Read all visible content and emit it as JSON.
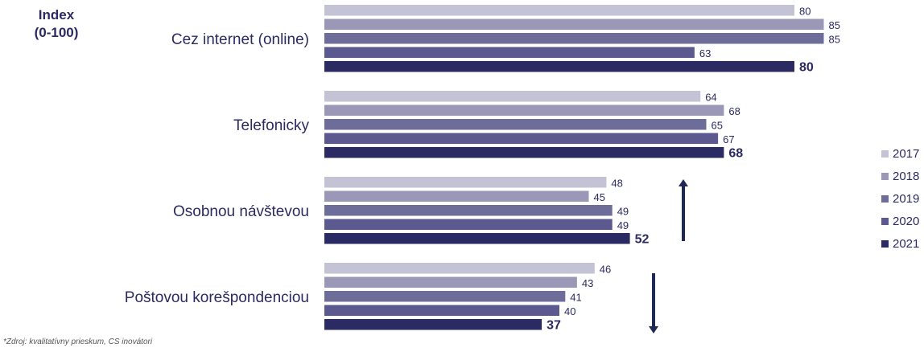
{
  "index_label_line1": "Index",
  "index_label_line2": "(0-100)",
  "footnote": "*Zdroj: kvalitatívny prieskum, CS inovátori",
  "colors": {
    "2017": "#c4c3d6",
    "2018": "#9a98b6",
    "2019": "#6e6c98",
    "2020": "#5b5990",
    "2021": "#2b2a62",
    "arrow": "#1e2a55",
    "text": "#2b2a62"
  },
  "chart_data": {
    "type": "bar",
    "orientation": "horizontal",
    "categories": [
      "Cez internet (online)",
      "Telefonicky",
      "Osobnou návštevou",
      "Poštovou korešpondenciou"
    ],
    "series": [
      {
        "name": "2017",
        "values": [
          80,
          64,
          48,
          46
        ]
      },
      {
        "name": "2018",
        "values": [
          85,
          68,
          45,
          43
        ]
      },
      {
        "name": "2019",
        "values": [
          85,
          65,
          49,
          41
        ]
      },
      {
        "name": "2020",
        "values": [
          63,
          67,
          49,
          40
        ]
      },
      {
        "name": "2021",
        "values": [
          80,
          68,
          52,
          37
        ]
      }
    ],
    "xlim": [
      0,
      100
    ],
    "ylabel": "Index (0-100)",
    "legend_position": "right",
    "highlight_series": "2021",
    "trend_arrows": [
      {
        "category": "Osobnou návštevou",
        "direction": "up"
      },
      {
        "category": "Poštovou korešpondenciou",
        "direction": "down"
      }
    ]
  }
}
